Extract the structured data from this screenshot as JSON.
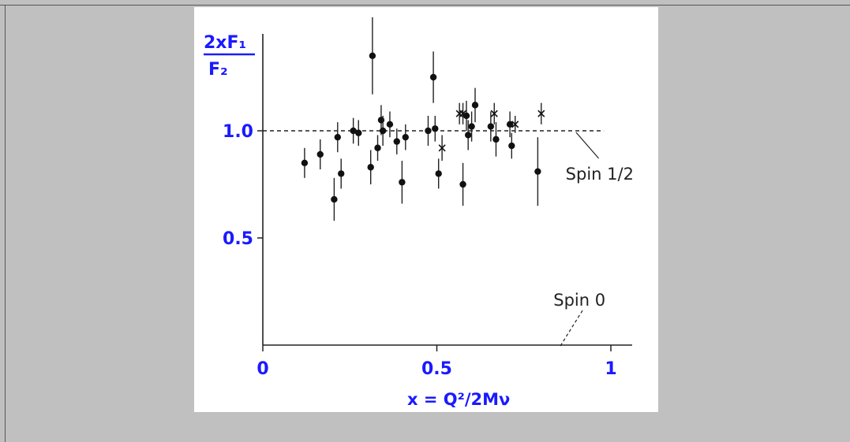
{
  "chart_data": {
    "type": "scatter",
    "ylabel_numerator": "2xF₁",
    "ylabel_denominator": "F₂",
    "xlabel": "x = Q²/2Mν",
    "xlim": [
      0,
      1.05
    ],
    "ylim": [
      0,
      1.45
    ],
    "x_ticks": [
      "0",
      "0.5",
      "1"
    ],
    "x_tick_values": [
      0,
      0.5,
      1
    ],
    "y_ticks": [
      "0.5",
      "1.0"
    ],
    "y_tick_values": [
      0.5,
      1.0
    ],
    "reference_lines": [
      {
        "label": "Spin 1/2",
        "y": 1.0,
        "x_range": [
          0,
          0.98
        ],
        "style": "dashed"
      },
      {
        "label": "Spin 0",
        "y": 0.0,
        "style": "dashed"
      }
    ],
    "series": [
      {
        "marker": "circle",
        "points": [
          {
            "x": 0.12,
            "y": 0.85,
            "err": 0.07
          },
          {
            "x": 0.165,
            "y": 0.89,
            "err": 0.07
          },
          {
            "x": 0.205,
            "y": 0.68,
            "err": 0.1
          },
          {
            "x": 0.215,
            "y": 0.97,
            "err": 0.07
          },
          {
            "x": 0.225,
            "y": 0.8,
            "err": 0.07
          },
          {
            "x": 0.26,
            "y": 1.0,
            "err": 0.06
          },
          {
            "x": 0.275,
            "y": 0.99,
            "err": 0.06
          },
          {
            "x": 0.31,
            "y": 0.83,
            "err": 0.08
          },
          {
            "x": 0.315,
            "y": 1.35,
            "err": 0.18
          },
          {
            "x": 0.33,
            "y": 0.92,
            "err": 0.06
          },
          {
            "x": 0.34,
            "y": 1.05,
            "err": 0.07
          },
          {
            "x": 0.345,
            "y": 1.0,
            "err": 0.07
          },
          {
            "x": 0.365,
            "y": 1.03,
            "err": 0.06
          },
          {
            "x": 0.385,
            "y": 0.95,
            "err": 0.06
          },
          {
            "x": 0.4,
            "y": 0.76,
            "err": 0.1
          },
          {
            "x": 0.41,
            "y": 0.97,
            "err": 0.06
          },
          {
            "x": 0.475,
            "y": 1.0,
            "err": 0.07
          },
          {
            "x": 0.49,
            "y": 1.25,
            "err": 0.12
          },
          {
            "x": 0.495,
            "y": 1.01,
            "err": 0.06
          },
          {
            "x": 0.505,
            "y": 0.8,
            "err": 0.07
          },
          {
            "x": 0.575,
            "y": 0.75,
            "err": 0.1
          },
          {
            "x": 0.585,
            "y": 1.07,
            "err": 0.07
          },
          {
            "x": 0.59,
            "y": 0.98,
            "err": 0.07
          },
          {
            "x": 0.6,
            "y": 1.02,
            "err": 0.07
          },
          {
            "x": 0.61,
            "y": 1.12,
            "err": 0.08
          },
          {
            "x": 0.655,
            "y": 1.02,
            "err": 0.07
          },
          {
            "x": 0.67,
            "y": 0.96,
            "err": 0.08
          },
          {
            "x": 0.71,
            "y": 1.03,
            "err": 0.06
          },
          {
            "x": 0.715,
            "y": 0.93,
            "err": 0.06
          },
          {
            "x": 0.79,
            "y": 0.81,
            "err": 0.16
          }
        ]
      },
      {
        "marker": "cross",
        "points": [
          {
            "x": 0.515,
            "y": 0.92,
            "err": 0.06
          },
          {
            "x": 0.565,
            "y": 1.08,
            "err": 0.05
          },
          {
            "x": 0.575,
            "y": 1.08,
            "err": 0.05
          },
          {
            "x": 0.665,
            "y": 1.08,
            "err": 0.05
          },
          {
            "x": 0.725,
            "y": 1.03,
            "err": 0.04
          },
          {
            "x": 0.8,
            "y": 1.08,
            "err": 0.05
          }
        ]
      }
    ]
  }
}
